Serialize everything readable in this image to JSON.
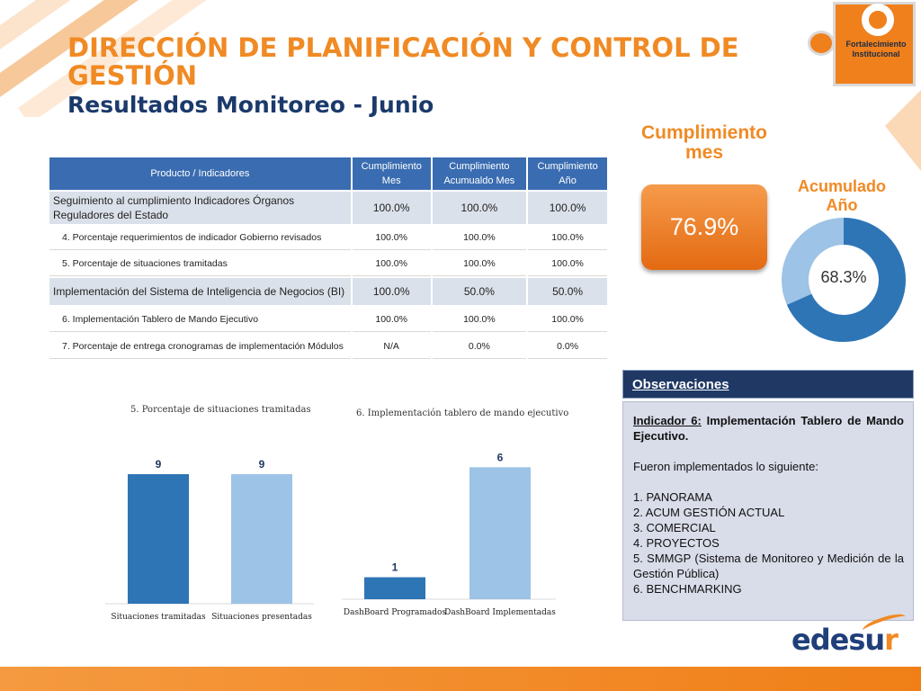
{
  "header": {
    "title": "DIRECCIÓN DE PLANIFICACIÓN Y CONTROL DE GESTIÓN",
    "subtitle": "Resultados Monitoreo - Junio"
  },
  "badge": {
    "text": "Fortalecimiento Institucional"
  },
  "table": {
    "headers": [
      "Producto / Indicadores",
      "Cumplimiento Mes",
      "Cumplimiento Acumualdo Mes",
      "Cumplimiento Año"
    ],
    "rows": [
      {
        "label": "Seguimiento al cumplimiento Indicadores Órganos Reguladores del Estado",
        "mes": "100.0%",
        "acum": "100.0%",
        "anio": "100.0%"
      },
      {
        "label": "4. Porcentaje requerimientos de indicador Gobierno revisados",
        "mes": "100.0%",
        "acum": "100.0%",
        "anio": "100.0%"
      },
      {
        "label": "5. Porcentaje de situaciones tramitadas",
        "mes": "100.0%",
        "acum": "100.0%",
        "anio": "100.0%"
      },
      {
        "label": "Implementación del Sistema de Inteligencia de Negocios (BI)",
        "mes": "100.0%",
        "acum": "50.0%",
        "anio": "50.0%"
      },
      {
        "label": "6. Implementación Tablero de Mando Ejecutivo",
        "mes": "100.0%",
        "acum": "100.0%",
        "anio": "100.0%"
      },
      {
        "label": "7. Porcentaje de entrega cronogramas de implementación Módulos",
        "mes": "N/A",
        "acum": "0.0%",
        "anio": "0.0%"
      }
    ]
  },
  "kpi": {
    "mes_label": "Cumplimiento mes",
    "mes_value": "76.9%",
    "acum_label": "Acumulado Año",
    "acum_value": "68.3%",
    "acum_fraction": 0.683,
    "colors": {
      "filled": "#2e75b6",
      "remaining": "#9dc3e6",
      "box": "#ef7d22"
    }
  },
  "chart_data": [
    {
      "type": "bar",
      "title": "5. Porcentaje de situaciones tramitadas",
      "categories": [
        "Situaciones tramitadas",
        "Situaciones presentadas"
      ],
      "values": [
        9,
        9
      ],
      "colors": [
        "#2e75b6",
        "#9dc3e6"
      ],
      "ylim": [
        0,
        11
      ]
    },
    {
      "type": "bar",
      "title": "6. Implementación tablero de mando ejecutivo",
      "categories": [
        "DashBoard Programados",
        "DashBoard Implementadas"
      ],
      "values": [
        1,
        6
      ],
      "colors": [
        "#2e75b6",
        "#9dc3e6"
      ],
      "ylim": [
        0,
        7.2
      ]
    }
  ],
  "observaciones": {
    "heading": "Observaciones",
    "indicador_tag": "Indicador 6:",
    "indicador_text": "Implementación Tablero de Mando Ejecutivo.",
    "intro": "Fueron implementados lo siguiente:",
    "items": [
      "1. PANORAMA",
      "2. ACUM GESTIÓN ACTUAL",
      "3. COMERCIAL",
      "4. PROYECTOS",
      "5. SMMGP (Sistema de Monitoreo y Medición de la Gestión Pública)",
      "6. BENCHMARKING"
    ]
  },
  "brand": {
    "main": "edesu",
    "accent": "r"
  }
}
